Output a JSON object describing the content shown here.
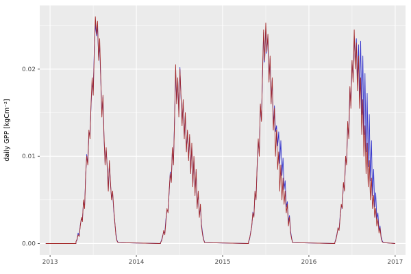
{
  "chart_data": {
    "type": "line",
    "title": "",
    "xlabel": "",
    "ylabel": "daily GPP [kgCm⁻²]",
    "xlim": [
      2012.88,
      2017.12
    ],
    "ylim": [
      -0.0013,
      0.0273
    ],
    "x_ticks": [
      2013,
      2014,
      2015,
      2016,
      2017
    ],
    "x_tick_labels": [
      "2013",
      "2014",
      "2015",
      "2016",
      "2017"
    ],
    "x_minor": [
      2013.5,
      2014.5,
      2015.5,
      2016.5
    ],
    "y_ticks": [
      0,
      0.01,
      0.02
    ],
    "y_tick_labels": [
      "0.00",
      "0.01",
      "0.02"
    ],
    "y_minor": [
      0.005,
      0.015,
      0.025
    ],
    "grid": true,
    "legend": "none",
    "colors": {
      "panel_bg": "#ebebeb",
      "grid_major": "#ffffff",
      "grid_minor": "#ffffff",
      "tick_text": "#4d4d4d",
      "tick_mark": "#333333"
    },
    "baseline_start": 2012.95,
    "baseline_end": 2017.0,
    "series": [
      {
        "name": "series-blue",
        "color": "#3333cc",
        "segments": [
          {
            "x0": 2013.3,
            "dx": 0.0125,
            "values": [
              0.0002,
              0.0004,
              0.0012,
              0.0009,
              0.0021,
              0.0028,
              0.0027,
              0.0048,
              0.0042,
              0.0078,
              0.0102,
              0.0092,
              0.0128,
              0.0125,
              0.0158,
              0.0185,
              0.0175,
              0.0225,
              0.0252,
              0.0238,
              0.0248,
              0.0212,
              0.0228,
              0.0188,
              0.0148,
              0.0168,
              0.0122,
              0.0092,
              0.0108,
              0.0088,
              0.0062,
              0.0092,
              0.0068,
              0.0052,
              0.0058,
              0.0038,
              0.0024,
              0.0012,
              0.0004,
              0.0001
            ]
          },
          {
            "x0": 2014.28,
            "dx": 0.0125,
            "values": [
              0.0001,
              0.0004,
              0.0009,
              0.0013,
              0.0012,
              0.0028,
              0.0038,
              0.0037,
              0.0058,
              0.0082,
              0.0072,
              0.0108,
              0.0092,
              0.0142,
              0.0198,
              0.0162,
              0.0188,
              0.0148,
              0.0202,
              0.0168,
              0.0138,
              0.0162,
              0.0122,
              0.0148,
              0.0108,
              0.0128,
              0.0098,
              0.0122,
              0.0082,
              0.0112,
              0.0068,
              0.0098,
              0.0058,
              0.0082,
              0.0042,
              0.0058,
              0.0032,
              0.0042,
              0.0022,
              0.0012,
              0.0005,
              0.0001
            ]
          },
          {
            "x0": 2015.3,
            "dx": 0.0125,
            "values": [
              0.0002,
              0.0005,
              0.0013,
              0.0019,
              0.0036,
              0.0032,
              0.0058,
              0.0052,
              0.0088,
              0.0118,
              0.0102,
              0.0158,
              0.0142,
              0.0192,
              0.0242,
              0.0208,
              0.0248,
              0.0218,
              0.0238,
              0.0188,
              0.0212,
              0.0162,
              0.0188,
              0.0135,
              0.0158,
              0.0128,
              0.0135,
              0.0112,
              0.0128,
              0.0092,
              0.0118,
              0.0078,
              0.0098,
              0.0062,
              0.0072,
              0.0042,
              0.0048,
              0.0025,
              0.0032,
              0.0014,
              0.0006,
              0.0001
            ]
          },
          {
            "x0": 2016.3,
            "dx": 0.0125,
            "values": [
              0.0001,
              0.0005,
              0.0011,
              0.0017,
              0.0016,
              0.0032,
              0.0042,
              0.0042,
              0.0068,
              0.0062,
              0.0098,
              0.0092,
              0.0138,
              0.0122,
              0.0178,
              0.0158,
              0.0208,
              0.0188,
              0.0238,
              0.0205,
              0.0235,
              0.0185,
              0.0228,
              0.0168,
              0.0232,
              0.0148,
              0.0215,
              0.0125,
              0.0195,
              0.0105,
              0.0172,
              0.0088,
              0.0148,
              0.0072,
              0.0118,
              0.0055,
              0.0085,
              0.0042,
              0.0058,
              0.0028,
              0.0035,
              0.0015,
              0.002,
              0.0008,
              0.0003,
              0.0001
            ]
          }
        ]
      },
      {
        "name": "series-red",
        "color": "#a52a2a",
        "segments": [
          {
            "x0": 2013.3,
            "dx": 0.0125,
            "values": [
              0.0002,
              0.0005,
              0.001,
              0.0008,
              0.002,
              0.003,
              0.0025,
              0.005,
              0.004,
              0.008,
              0.01,
              0.009,
              0.013,
              0.012,
              0.016,
              0.019,
              0.017,
              0.022,
              0.026,
              0.024,
              0.0255,
              0.021,
              0.0235,
              0.019,
              0.0145,
              0.017,
              0.0125,
              0.009,
              0.011,
              0.0085,
              0.006,
              0.0095,
              0.007,
              0.005,
              0.006,
              0.004,
              0.0025,
              0.001,
              0.0003,
              0.0001
            ]
          },
          {
            "x0": 2014.28,
            "dx": 0.0125,
            "values": [
              0.0001,
              0.0003,
              0.0008,
              0.0015,
              0.001,
              0.0025,
              0.004,
              0.0035,
              0.006,
              0.008,
              0.007,
              0.011,
              0.009,
              0.014,
              0.0205,
              0.016,
              0.019,
              0.0145,
              0.02,
              0.017,
              0.0135,
              0.0165,
              0.012,
              0.015,
              0.0105,
              0.013,
              0.0095,
              0.0125,
              0.008,
              0.0115,
              0.0065,
              0.01,
              0.0055,
              0.0085,
              0.004,
              0.006,
              0.003,
              0.0045,
              0.002,
              0.001,
              0.0004,
              0.0001
            ]
          },
          {
            "x0": 2015.3,
            "dx": 0.0125,
            "values": [
              0.0002,
              0.0006,
              0.0012,
              0.002,
              0.0035,
              0.003,
              0.006,
              0.005,
              0.009,
              0.012,
              0.01,
              0.016,
              0.014,
              0.0195,
              0.0245,
              0.021,
              0.0253,
              0.022,
              0.024,
              0.0185,
              0.0215,
              0.016,
              0.019,
              0.013,
              0.0155,
              0.01,
              0.013,
              0.0085,
              0.0105,
              0.006,
              0.009,
              0.005,
              0.0075,
              0.0045,
              0.006,
              0.0035,
              0.0045,
              0.002,
              0.003,
              0.0012,
              0.0005,
              0.0001
            ]
          },
          {
            "x0": 2016.3,
            "dx": 0.0125,
            "values": [
              0.0001,
              0.0004,
              0.001,
              0.0018,
              0.0015,
              0.003,
              0.0045,
              0.004,
              0.007,
              0.006,
              0.01,
              0.009,
              0.014,
              0.012,
              0.018,
              0.0155,
              0.021,
              0.0185,
              0.0245,
              0.02,
              0.023,
              0.0175,
              0.0215,
              0.0155,
              0.019,
              0.0125,
              0.0165,
              0.01,
              0.0135,
              0.008,
              0.0115,
              0.0065,
              0.0095,
              0.005,
              0.0075,
              0.004,
              0.0055,
              0.003,
              0.004,
              0.002,
              0.0028,
              0.0012,
              0.0018,
              0.0006,
              0.0002,
              0.0001
            ]
          }
        ]
      }
    ]
  }
}
